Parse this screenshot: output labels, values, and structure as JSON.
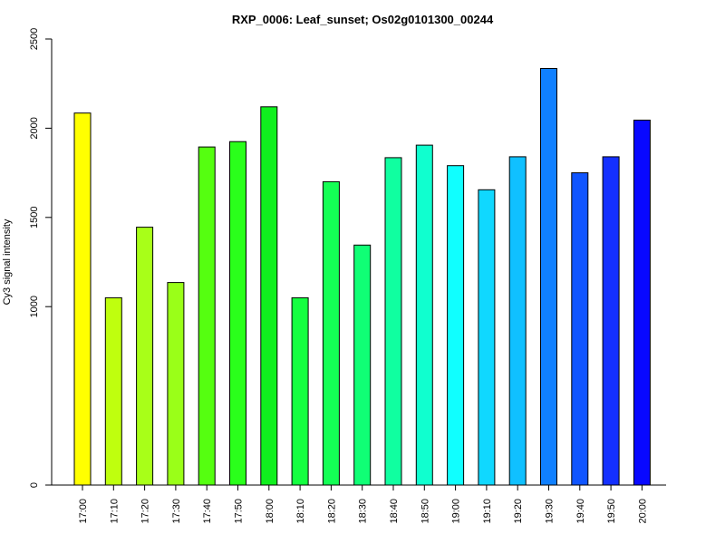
{
  "chart_data": {
    "type": "bar",
    "title": "RXP_0006: Leaf_sunset; Os02g0101300_00244",
    "xlabel": "",
    "ylabel": "Cy3 signal intensity",
    "ylim": [
      0,
      2500
    ],
    "yticks": [
      0,
      1000,
      1500,
      2000,
      2500
    ],
    "categories": [
      "17:00",
      "17:10",
      "17:20",
      "17:30",
      "17:40",
      "17:50",
      "18:00",
      "18:10",
      "18:20",
      "18:30",
      "18:40",
      "18:50",
      "19:00",
      "19:10",
      "19:20",
      "19:30",
      "19:40",
      "19:50",
      "20:00"
    ],
    "values": [
      2085,
      1050,
      1445,
      1135,
      1895,
      1925,
      2120,
      1050,
      1700,
      1345,
      1835,
      1905,
      1790,
      1655,
      1840,
      2335,
      1750,
      1840,
      2045
    ],
    "colors": [
      "#FFFF00",
      "#BFFF0E",
      "#A8FF18",
      "#9AFF18",
      "#55FF10",
      "#2AFF1B",
      "#10F01E",
      "#14FF40",
      "#14FF55",
      "#10FF75",
      "#10FFA0",
      "#10FFCF",
      "#10FFFF",
      "#10D8FF",
      "#10C0FF",
      "#1080FF",
      "#1055FF",
      "#1430FF",
      "#0808FF"
    ],
    "grid": false,
    "legend": "none"
  }
}
